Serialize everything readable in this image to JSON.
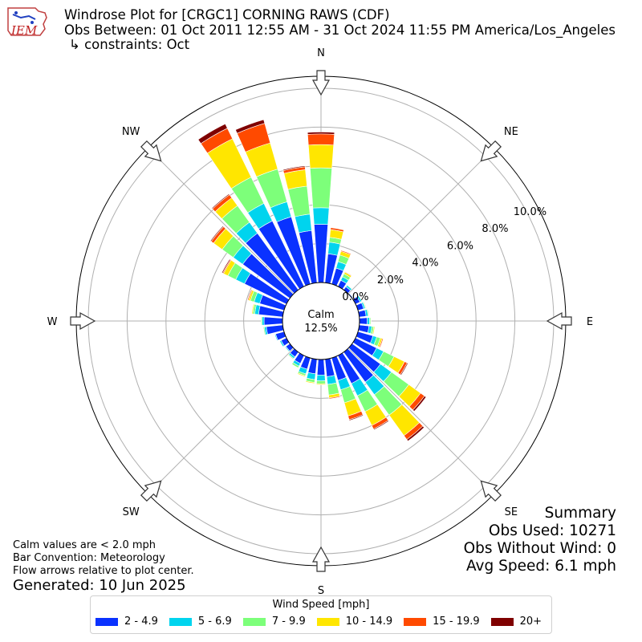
{
  "header": {
    "title": "Windrose Plot for [CRGC1] CORNING RAWS (CDF)",
    "obs_between": "Obs Between: 01 Oct 2011 12:55 AM - 31 Oct 2024 11:55 PM America/Los_Angeles",
    "constraints": "↳ constraints: Oct",
    "logo_text": "IEM"
  },
  "summary": {
    "title": "Summary",
    "obs_used": "Obs Used: 10271",
    "obs_without_wind": "Obs Without Wind: 0",
    "avg_speed": "Avg Speed: 6.1 mph"
  },
  "notes": {
    "calm_note": "Calm values are < 2.0 mph",
    "bar_convention": "Bar Convention: Meteorology",
    "flow_arrows": "Flow arrows relative to plot center.",
    "generated": "Generated: 10 Jun 2025"
  },
  "legend": {
    "title": "Wind Speed [mph]",
    "items": [
      {
        "label": "2 - 4.9",
        "color": "#0a32ff"
      },
      {
        "label": "5 - 6.9",
        "color": "#00d4ee"
      },
      {
        "label": "7 - 9.9",
        "color": "#7dff7a"
      },
      {
        "label": "10 - 14.9",
        "color": "#ffe600"
      },
      {
        "label": "15 - 19.9",
        "color": "#ff4a00"
      },
      {
        "label": "20+",
        "color": "#7f0000"
      }
    ]
  },
  "chart_data": {
    "type": "windrose",
    "calm_label": "Calm",
    "calm_value": "12.5%",
    "rmax": 10.0,
    "radial_ticks": [
      {
        "value": 0.0,
        "label": "0.0%"
      },
      {
        "value": 2.0,
        "label": "2.0%"
      },
      {
        "value": 4.0,
        "label": "4.0%"
      },
      {
        "value": 6.0,
        "label": "6.0%"
      },
      {
        "value": 8.0,
        "label": "8.0%"
      },
      {
        "value": 10.0,
        "label": "10.0%"
      }
    ],
    "compass_labels": [
      {
        "dir": 0,
        "label": "N"
      },
      {
        "dir": 45,
        "label": "NE"
      },
      {
        "dir": 90,
        "label": "E"
      },
      {
        "dir": 135,
        "label": "SE"
      },
      {
        "dir": 180,
        "label": "S"
      },
      {
        "dir": 225,
        "label": "SW"
      },
      {
        "dir": 270,
        "label": "W"
      },
      {
        "dir": 315,
        "label": "NW"
      }
    ],
    "bin_width_deg": 10,
    "colors": [
      "#0a32ff",
      "#00d4ee",
      "#7dff7a",
      "#ffe600",
      "#ff4a00",
      "#7f0000"
    ],
    "directions": [
      {
        "dir": 0,
        "cum": [
          3.0,
          3.85,
          5.9,
          7.1,
          7.65,
          7.75
        ]
      },
      {
        "dir": 10,
        "cum": [
          1.5,
          2.1,
          2.35,
          2.75,
          2.85,
          2.85
        ]
      },
      {
        "dir": 20,
        "cum": [
          0.85,
          1.2,
          1.55,
          1.75,
          1.8,
          1.8
        ]
      },
      {
        "dir": 30,
        "cum": [
          0.35,
          0.55,
          0.72,
          0.82,
          0.85,
          0.85
        ]
      },
      {
        "dir": 40,
        "cum": [
          0.2,
          0.3,
          0.33,
          0.35,
          0.35,
          0.35
        ]
      },
      {
        "dir": 50,
        "cum": [
          0.05,
          0.08,
          0.1,
          0.1,
          0.1,
          0.1
        ]
      },
      {
        "dir": 60,
        "cum": [
          0.25,
          0.35,
          0.38,
          0.4,
          0.4,
          0.4
        ]
      },
      {
        "dir": 70,
        "cum": [
          0.3,
          0.38,
          0.42,
          0.45,
          0.45,
          0.45
        ]
      },
      {
        "dir": 80,
        "cum": [
          0.35,
          0.45,
          0.5,
          0.52,
          0.52,
          0.52
        ]
      },
      {
        "dir": 90,
        "cum": [
          0.4,
          0.52,
          0.58,
          0.6,
          0.6,
          0.6
        ]
      },
      {
        "dir": 100,
        "cum": [
          0.5,
          0.65,
          0.75,
          0.8,
          0.8,
          0.8
        ]
      },
      {
        "dir": 110,
        "cum": [
          0.8,
          1.0,
          1.2,
          1.3,
          1.35,
          1.35
        ]
      },
      {
        "dir": 120,
        "cum": [
          1.2,
          1.6,
          2.2,
          2.8,
          2.95,
          3.0
        ]
      },
      {
        "dir": 130,
        "cum": [
          1.8,
          2.5,
          3.6,
          4.35,
          4.6,
          4.7
        ]
      },
      {
        "dir": 140,
        "cum": [
          1.9,
          2.7,
          4.0,
          5.3,
          5.55,
          5.65
        ]
      },
      {
        "dir": 150,
        "cum": [
          1.6,
          2.3,
          3.2,
          4.0,
          4.2,
          4.25
        ]
      },
      {
        "dir": 160,
        "cum": [
          1.2,
          1.7,
          2.4,
          3.1,
          3.3,
          3.35
        ]
      },
      {
        "dir": 170,
        "cum": [
          0.9,
          1.3,
          1.85,
          2.0,
          2.05,
          2.05
        ]
      },
      {
        "dir": 180,
        "cum": [
          0.8,
          1.1,
          1.25,
          1.3,
          1.3,
          1.3
        ]
      },
      {
        "dir": 190,
        "cum": [
          0.75,
          1.05,
          1.2,
          1.25,
          1.25,
          1.25
        ]
      },
      {
        "dir": 200,
        "cum": [
          0.6,
          0.85,
          0.95,
          1.0,
          1.0,
          1.0
        ]
      },
      {
        "dir": 210,
        "cum": [
          0.45,
          0.6,
          0.7,
          0.72,
          0.72,
          0.72
        ]
      },
      {
        "dir": 220,
        "cum": [
          0.3,
          0.4,
          0.45,
          0.47,
          0.47,
          0.47
        ]
      },
      {
        "dir": 230,
        "cum": [
          0.25,
          0.3,
          0.33,
          0.35,
          0.35,
          0.35
        ]
      },
      {
        "dir": 240,
        "cum": [
          0.3,
          0.38,
          0.4,
          0.4,
          0.4,
          0.4
        ]
      },
      {
        "dir": 250,
        "cum": [
          0.45,
          0.5,
          0.52,
          0.52,
          0.52,
          0.52
        ]
      },
      {
        "dir": 260,
        "cum": [
          0.85,
          0.95,
          1.0,
          1.0,
          1.0,
          1.0
        ]
      },
      {
        "dir": 270,
        "cum": [
          0.95,
          1.05,
          1.1,
          1.1,
          1.1,
          1.1
        ]
      },
      {
        "dir": 280,
        "cum": [
          1.25,
          1.45,
          1.55,
          1.6,
          1.6,
          1.6
        ]
      },
      {
        "dir": 290,
        "cum": [
          1.3,
          1.6,
          1.8,
          1.9,
          1.95,
          1.95
        ]
      },
      {
        "dir": 300,
        "cum": [
          2.4,
          2.9,
          3.35,
          3.6,
          3.65,
          3.7
        ]
      },
      {
        "dir": 310,
        "cum": [
          3.0,
          3.6,
          4.3,
          4.85,
          5.0,
          5.05
        ]
      },
      {
        "dir": 320,
        "cum": [
          3.6,
          4.3,
          5.35,
          5.85,
          6.05,
          6.1
        ]
      },
      {
        "dir": 330,
        "cum": [
          3.75,
          4.75,
          6.25,
          8.45,
          9.05,
          9.3
        ]
      },
      {
        "dir": 340,
        "cum": [
          3.6,
          4.4,
          6.15,
          7.55,
          8.6,
          8.8
        ]
      },
      {
        "dir": 350,
        "cum": [
          2.7,
          3.55,
          5.0,
          5.85,
          6.0,
          6.05
        ]
      }
    ]
  }
}
